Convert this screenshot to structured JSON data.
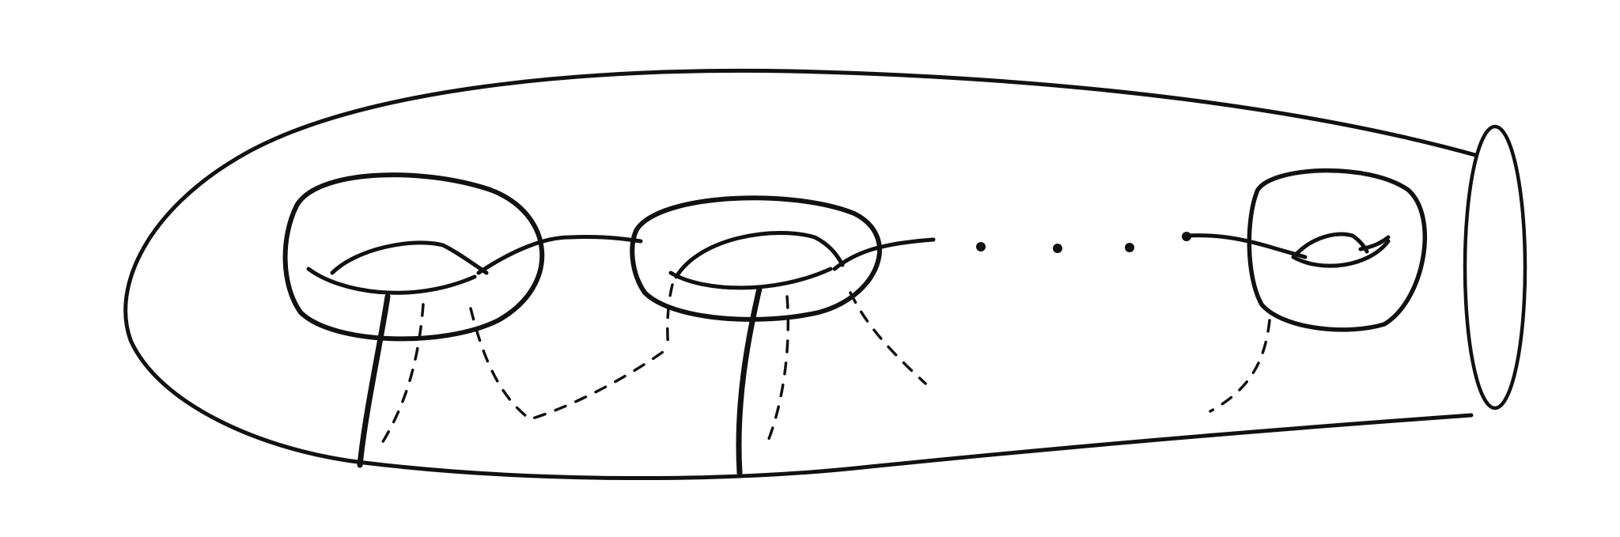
{
  "diagram": {
    "kind": "surface-sketch",
    "ink_color": "#111111",
    "background_color": "#ffffff",
    "handles_drawn": 3,
    "ellipsis_dots": 4,
    "open_boundary_components": 1,
    "text_labels": []
  }
}
